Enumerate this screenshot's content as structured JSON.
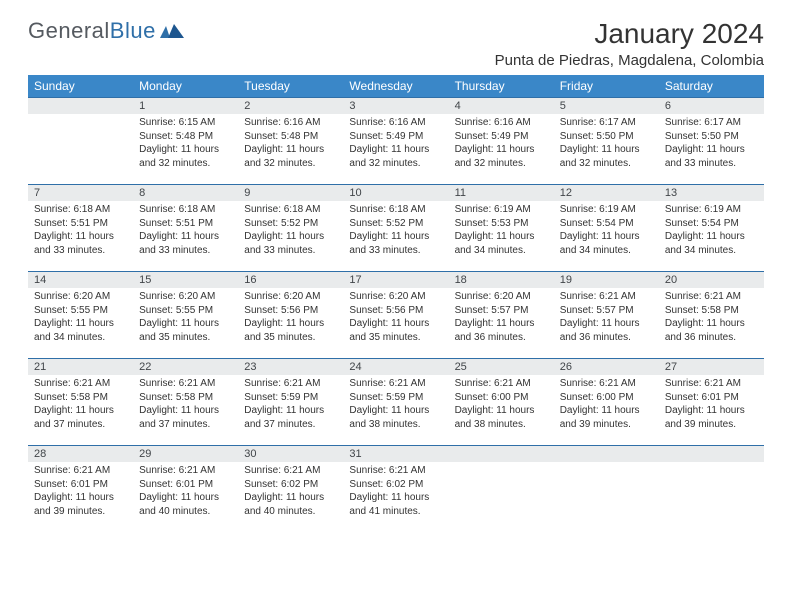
{
  "brand": {
    "text1": "General",
    "text2": "Blue"
  },
  "title": "January 2024",
  "location": "Punta de Piedras, Magdalena, Colombia",
  "colors": {
    "header_bg": "#3a87c8",
    "header_fg": "#ffffff",
    "daybar_bg": "#e9ebec",
    "rule": "#2f6fa8",
    "text": "#333333"
  },
  "typography": {
    "title_size": 28,
    "location_size": 15,
    "header_size": 12,
    "body_size": 10
  },
  "columns": [
    "Sunday",
    "Monday",
    "Tuesday",
    "Wednesday",
    "Thursday",
    "Friday",
    "Saturday"
  ],
  "weeks": [
    [
      null,
      {
        "d": "1",
        "sr": "6:15 AM",
        "ss": "5:48 PM",
        "dl": "11 hours and 32 minutes."
      },
      {
        "d": "2",
        "sr": "6:16 AM",
        "ss": "5:48 PM",
        "dl": "11 hours and 32 minutes."
      },
      {
        "d": "3",
        "sr": "6:16 AM",
        "ss": "5:49 PM",
        "dl": "11 hours and 32 minutes."
      },
      {
        "d": "4",
        "sr": "6:16 AM",
        "ss": "5:49 PM",
        "dl": "11 hours and 32 minutes."
      },
      {
        "d": "5",
        "sr": "6:17 AM",
        "ss": "5:50 PM",
        "dl": "11 hours and 32 minutes."
      },
      {
        "d": "6",
        "sr": "6:17 AM",
        "ss": "5:50 PM",
        "dl": "11 hours and 33 minutes."
      }
    ],
    [
      {
        "d": "7",
        "sr": "6:18 AM",
        "ss": "5:51 PM",
        "dl": "11 hours and 33 minutes."
      },
      {
        "d": "8",
        "sr": "6:18 AM",
        "ss": "5:51 PM",
        "dl": "11 hours and 33 minutes."
      },
      {
        "d": "9",
        "sr": "6:18 AM",
        "ss": "5:52 PM",
        "dl": "11 hours and 33 minutes."
      },
      {
        "d": "10",
        "sr": "6:18 AM",
        "ss": "5:52 PM",
        "dl": "11 hours and 33 minutes."
      },
      {
        "d": "11",
        "sr": "6:19 AM",
        "ss": "5:53 PM",
        "dl": "11 hours and 34 minutes."
      },
      {
        "d": "12",
        "sr": "6:19 AM",
        "ss": "5:54 PM",
        "dl": "11 hours and 34 minutes."
      },
      {
        "d": "13",
        "sr": "6:19 AM",
        "ss": "5:54 PM",
        "dl": "11 hours and 34 minutes."
      }
    ],
    [
      {
        "d": "14",
        "sr": "6:20 AM",
        "ss": "5:55 PM",
        "dl": "11 hours and 34 minutes."
      },
      {
        "d": "15",
        "sr": "6:20 AM",
        "ss": "5:55 PM",
        "dl": "11 hours and 35 minutes."
      },
      {
        "d": "16",
        "sr": "6:20 AM",
        "ss": "5:56 PM",
        "dl": "11 hours and 35 minutes."
      },
      {
        "d": "17",
        "sr": "6:20 AM",
        "ss": "5:56 PM",
        "dl": "11 hours and 35 minutes."
      },
      {
        "d": "18",
        "sr": "6:20 AM",
        "ss": "5:57 PM",
        "dl": "11 hours and 36 minutes."
      },
      {
        "d": "19",
        "sr": "6:21 AM",
        "ss": "5:57 PM",
        "dl": "11 hours and 36 minutes."
      },
      {
        "d": "20",
        "sr": "6:21 AM",
        "ss": "5:58 PM",
        "dl": "11 hours and 36 minutes."
      }
    ],
    [
      {
        "d": "21",
        "sr": "6:21 AM",
        "ss": "5:58 PM",
        "dl": "11 hours and 37 minutes."
      },
      {
        "d": "22",
        "sr": "6:21 AM",
        "ss": "5:58 PM",
        "dl": "11 hours and 37 minutes."
      },
      {
        "d": "23",
        "sr": "6:21 AM",
        "ss": "5:59 PM",
        "dl": "11 hours and 37 minutes."
      },
      {
        "d": "24",
        "sr": "6:21 AM",
        "ss": "5:59 PM",
        "dl": "11 hours and 38 minutes."
      },
      {
        "d": "25",
        "sr": "6:21 AM",
        "ss": "6:00 PM",
        "dl": "11 hours and 38 minutes."
      },
      {
        "d": "26",
        "sr": "6:21 AM",
        "ss": "6:00 PM",
        "dl": "11 hours and 39 minutes."
      },
      {
        "d": "27",
        "sr": "6:21 AM",
        "ss": "6:01 PM",
        "dl": "11 hours and 39 minutes."
      }
    ],
    [
      {
        "d": "28",
        "sr": "6:21 AM",
        "ss": "6:01 PM",
        "dl": "11 hours and 39 minutes."
      },
      {
        "d": "29",
        "sr": "6:21 AM",
        "ss": "6:01 PM",
        "dl": "11 hours and 40 minutes."
      },
      {
        "d": "30",
        "sr": "6:21 AM",
        "ss": "6:02 PM",
        "dl": "11 hours and 40 minutes."
      },
      {
        "d": "31",
        "sr": "6:21 AM",
        "ss": "6:02 PM",
        "dl": "11 hours and 41 minutes."
      },
      null,
      null,
      null
    ]
  ],
  "labels": {
    "sunrise": "Sunrise:",
    "sunset": "Sunset:",
    "daylight": "Daylight:"
  }
}
